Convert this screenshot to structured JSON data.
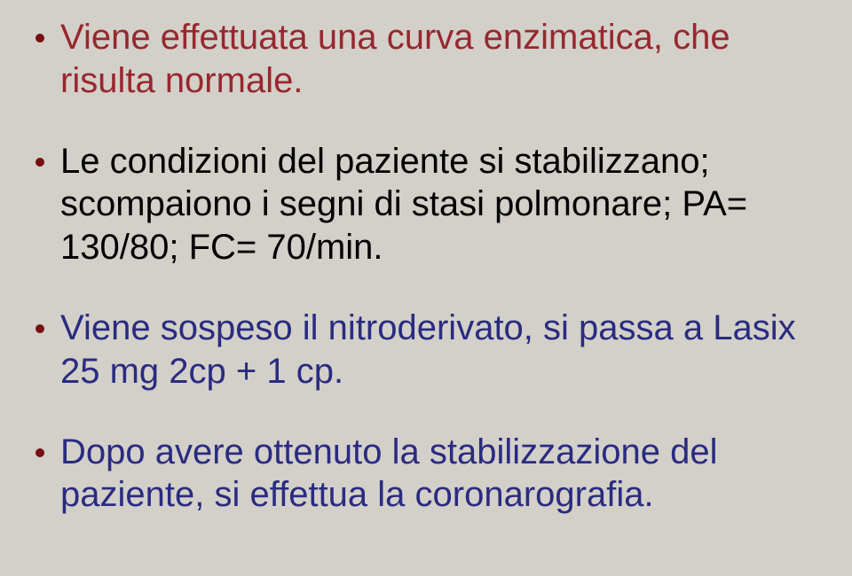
{
  "slide": {
    "background_color": "#d3d0c9",
    "bullet_color": "#760f12",
    "bullets": [
      {
        "text": "Viene effettuata una curva enzimatica, che risulta normale.",
        "color": "#98272f"
      },
      {
        "text": "Le condizioni del paziente si stabilizzano; scompaiono i segni di stasi polmonare; PA= 130/80; FC= 70/min.",
        "color": "#000000"
      },
      {
        "text": "Viene sospeso il nitroderivato,  si passa a Lasix 25 mg 2cp + 1 cp.",
        "color": "#2a2b80"
      },
      {
        "text": "Dopo avere ottenuto la stabilizzazione del paziente, si effettua la coronarografia.",
        "color": "#2a2b80"
      }
    ]
  }
}
